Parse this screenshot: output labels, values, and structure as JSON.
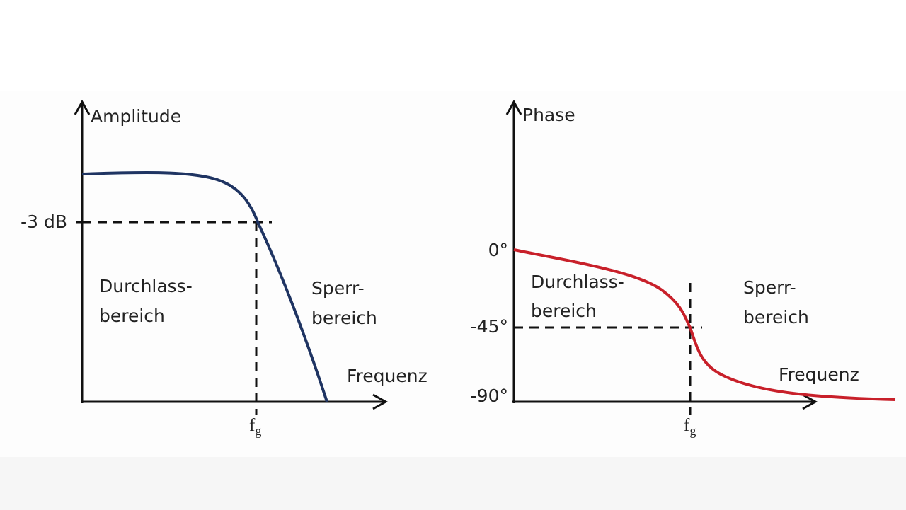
{
  "amplitude_diagram": {
    "y_axis_label": "Amplitude",
    "level_label": "-3 dB",
    "passband": [
      "Durchlass-",
      "bereich"
    ],
    "stopband": [
      "Sperr-",
      "bereich"
    ],
    "x_axis_label": "Frequenz",
    "cutoff": {
      "main": "f",
      "sub": "g"
    }
  },
  "phase_diagram": {
    "y_axis_label": "Phase",
    "y_labels": [
      "0°",
      "-45°",
      "-90°"
    ],
    "passband": [
      "Durchlass-",
      "bereich"
    ],
    "stopband": [
      "Sperr-",
      "bereich"
    ],
    "x_axis_label": "Frequenz",
    "cutoff": {
      "main": "f",
      "sub": "g"
    }
  }
}
